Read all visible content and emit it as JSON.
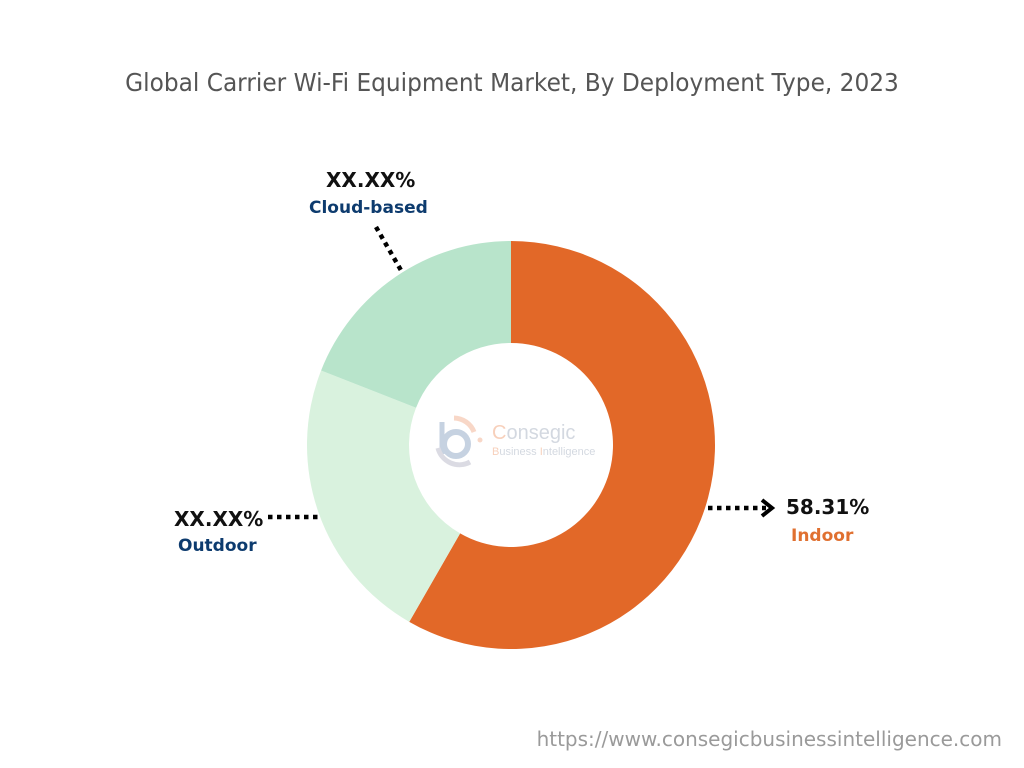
{
  "title": "Global Carrier Wi-Fi Equipment Market, By Deployment Type, 2023",
  "footer_url": "https://www.consegicbusinessintelligence.com",
  "watermark": {
    "brand_first_letter": "C",
    "brand_rest": "onsegic",
    "tagline_b": "B",
    "tagline_mid": "usiness ",
    "tagline_i": "I",
    "tagline_rest": "ntelligence"
  },
  "labels": {
    "indoor": {
      "value": "58.31%",
      "name": "Indoor"
    },
    "outdoor": {
      "value": "XX.XX%",
      "name": "Outdoor"
    },
    "cloud": {
      "value": "XX.XX%",
      "name": "Cloud-based"
    }
  },
  "colors": {
    "indoor": "#e26828",
    "outdoor": "#d9f2de",
    "cloud": "#b8e4cb",
    "label_dark_blue": "#0d3b6e",
    "label_orange": "#e07030"
  },
  "chart_data": {
    "type": "pie",
    "variant": "donut",
    "title": "Global Carrier Wi-Fi Equipment Market, By Deployment Type, 2023",
    "categories": [
      "Indoor",
      "Outdoor",
      "Cloud-based"
    ],
    "values": [
      58.31,
      22.64,
      19.05
    ],
    "value_labels": [
      "58.31%",
      "XX.XX%",
      "XX.XX%"
    ],
    "colors": [
      "#e26828",
      "#d9f2de",
      "#b8e4cb"
    ],
    "start_angle": "12 o'clock, clockwise",
    "legend": "none (callout labels)"
  }
}
